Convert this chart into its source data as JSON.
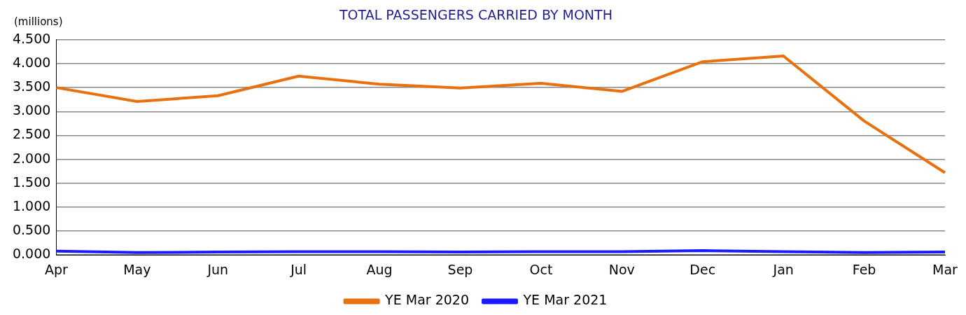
{
  "chart_data": {
    "type": "line",
    "title": "TOTAL PASSENGERS CARRIED BY MONTH",
    "ylabel": "(millions)",
    "categories": [
      "Apr",
      "May",
      "Jun",
      "Jul",
      "Aug",
      "Sep",
      "Oct",
      "Nov",
      "Dec",
      "Jan",
      "Feb",
      "Mar"
    ],
    "series": [
      {
        "name": "YE Mar 2020",
        "color": "#e8710f",
        "values": [
          3.5,
          3.21,
          3.33,
          3.74,
          3.57,
          3.49,
          3.59,
          3.42,
          4.04,
          4.16,
          2.8,
          1.72
        ]
      },
      {
        "name": "YE Mar 2021",
        "color": "#1a1aff",
        "values": [
          0.08,
          0.05,
          0.06,
          0.07,
          0.07,
          0.06,
          0.07,
          0.07,
          0.09,
          0.07,
          0.05,
          0.06
        ]
      }
    ],
    "ylim": [
      0,
      4.5
    ],
    "yticks": [
      {
        "value": 0,
        "label": "0.000"
      },
      {
        "value": 0.5,
        "label": "0.500"
      },
      {
        "value": 1,
        "label": "1.000"
      },
      {
        "value": 1.5,
        "label": "1.500"
      },
      {
        "value": 2,
        "label": "2.000"
      },
      {
        "value": 2.5,
        "label": "2.500"
      },
      {
        "value": 3,
        "label": "3.000"
      },
      {
        "value": 3.5,
        "label": "3.500"
      },
      {
        "value": 4,
        "label": "4.000"
      },
      {
        "value": 4.5,
        "label": "4.500"
      }
    ],
    "grid": "y",
    "legend": "bottom",
    "marker": "none",
    "line_style": "solid"
  }
}
